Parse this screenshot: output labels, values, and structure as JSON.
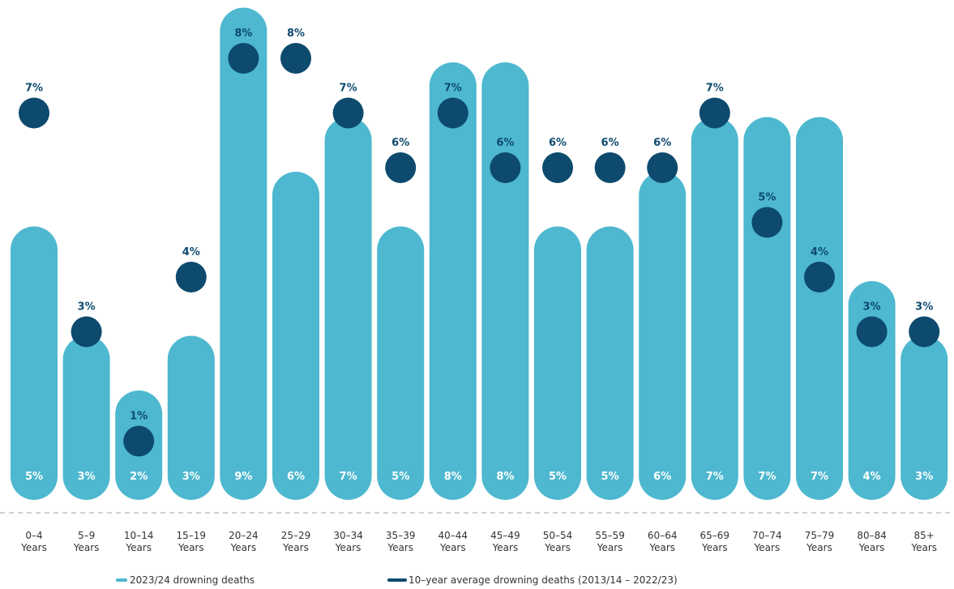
{
  "chart_data": {
    "type": "bar",
    "categories": [
      [
        "0–4",
        "Years"
      ],
      [
        "5–9",
        "Years"
      ],
      [
        "10–14",
        "Years"
      ],
      [
        "15–19",
        "Years"
      ],
      [
        "20–24",
        "Years"
      ],
      [
        "25–29",
        "Years"
      ],
      [
        "30–34",
        "Years"
      ],
      [
        "35–39",
        "Years"
      ],
      [
        "40–44",
        "Years"
      ],
      [
        "45–49",
        "Years"
      ],
      [
        "50–54",
        "Years"
      ],
      [
        "55–59",
        "Years"
      ],
      [
        "60–64",
        "Years"
      ],
      [
        "65–69",
        "Years"
      ],
      [
        "70–74",
        "Years"
      ],
      [
        "75–79",
        "Years"
      ],
      [
        "80–84",
        "Years"
      ],
      [
        "85+",
        "Years"
      ]
    ],
    "series": [
      {
        "name": "2023/24 drowning deaths",
        "kind": "bar",
        "color": "#4db8cf",
        "values": [
          5,
          3,
          2,
          3,
          9,
          6,
          7,
          5,
          8,
          8,
          5,
          5,
          6,
          7,
          7,
          7,
          4,
          3
        ],
        "labels": [
          "5%",
          "3%",
          "2%",
          "3%",
          "9%",
          "6%",
          "7%",
          "5%",
          "8%",
          "8%",
          "5%",
          "5%",
          "6%",
          "7%",
          "7%",
          "7%",
          "4%",
          "3%"
        ]
      },
      {
        "name": "10–year average drowning deaths (2013/14 – 2022/23)",
        "kind": "dot",
        "color": "#0d4a6e",
        "values": [
          7,
          3,
          1,
          4,
          8,
          8,
          7,
          6,
          7,
          6,
          6,
          6,
          6,
          7,
          5,
          4,
          3,
          3
        ],
        "labels": [
          "7%",
          "3%",
          "1%",
          "4%",
          "8%",
          "8%",
          "7%",
          "6%",
          "7%",
          "6%",
          "6%",
          "6%",
          "6%",
          "7%",
          "5%",
          "4%",
          "3%",
          "3%"
        ]
      }
    ],
    "ylim": [
      0,
      9
    ],
    "baseline_style": "dashed",
    "legend_position": "bottom-left"
  }
}
